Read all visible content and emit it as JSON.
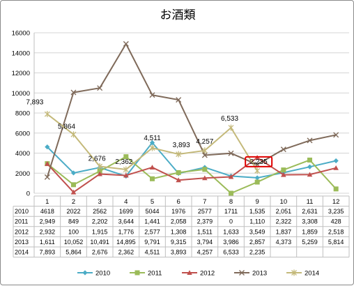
{
  "chart_data": {
    "type": "line",
    "title": "お酒類",
    "xlabel": "",
    "ylabel": "",
    "ylim": [
      0,
      16000
    ],
    "yticks": [
      0,
      2000,
      4000,
      6000,
      8000,
      10000,
      12000,
      14000,
      16000
    ],
    "ytick_labels": [
      "0",
      "2000",
      "4000",
      "6000",
      "8000",
      "10000",
      "12000",
      "14000",
      "16000"
    ],
    "categories": [
      "1",
      "2",
      "3",
      "4",
      "5",
      "6",
      "7",
      "8",
      "9",
      "10",
      "11",
      "12"
    ],
    "grid": true,
    "legend_position": "bottom",
    "colors": {
      "2010": "#4bacc6",
      "2011": "#9bbb59",
      "2012": "#c0504d",
      "2013": "#7f6a5a",
      "2014": "#c4b97a",
      "highlight": "#e00000"
    },
    "series": [
      {
        "name": "2010",
        "values": [
          4618,
          2022,
          2562,
          1699,
          5044,
          1976,
          2577,
          1711,
          1535,
          2051,
          2631,
          3235
        ],
        "table_values": [
          "4618",
          "2022",
          "2562",
          "1699",
          "5044",
          "1976",
          "2577",
          "1711",
          "1,535",
          "2,051",
          "2,631",
          "3,235"
        ]
      },
      {
        "name": "2011",
        "values": [
          2949,
          849,
          2202,
          3644,
          1441,
          2058,
          2379,
          0,
          1110,
          2322,
          3308,
          428
        ],
        "table_values": [
          "2,949",
          "849",
          "2,202",
          "3,644",
          "1,441",
          "2,058",
          "2,379",
          "0",
          "1,110",
          "2,322",
          "3,308",
          "428"
        ]
      },
      {
        "name": "2012",
        "values": [
          2932,
          100,
          1915,
          1776,
          2577,
          1308,
          1511,
          1633,
          3549,
          1837,
          1859,
          2518
        ],
        "table_values": [
          "2,932",
          "100",
          "1,915",
          "1,776",
          "2,577",
          "1,308",
          "1,511",
          "1,633",
          "3,549",
          "1,837",
          "1,859",
          "2,518"
        ]
      },
      {
        "name": "2013",
        "values": [
          1611,
          10052,
          10491,
          14895,
          9791,
          9315,
          3794,
          3986,
          2857,
          4373,
          5259,
          5814
        ],
        "table_values": [
          "1,611",
          "10,052",
          "10,491",
          "14,895",
          "9,791",
          "9,315",
          "3,794",
          "3,986",
          "2,857",
          "4,373",
          "5,259",
          "5,814"
        ]
      },
      {
        "name": "2014",
        "values": [
          7893,
          5864,
          2676,
          2362,
          4511,
          3893,
          4257,
          6533,
          2235,
          null,
          null,
          null
        ],
        "table_values": [
          "7,893",
          "5,864",
          "2,676",
          "2,362",
          "4,511",
          "3,893",
          "4,257",
          "6,533",
          "2,235",
          "",
          "",
          ""
        ]
      }
    ],
    "data_labels": [
      {
        "series": "2014",
        "index": 0,
        "text": "7,893"
      },
      {
        "series": "2014",
        "index": 1,
        "text": "5,864"
      },
      {
        "series": "2014",
        "index": 2,
        "text": "2,676"
      },
      {
        "series": "2014",
        "index": 3,
        "text": "2,362"
      },
      {
        "series": "2014",
        "index": 4,
        "text": "4,511"
      },
      {
        "series": "2014",
        "index": 5,
        "text": "3,893"
      },
      {
        "series": "2014",
        "index": 6,
        "text": "4,257"
      },
      {
        "series": "2014",
        "index": 7,
        "text": "6,533"
      },
      {
        "series": "2014",
        "index": 8,
        "text": "2,235",
        "highlighted": true
      }
    ]
  }
}
